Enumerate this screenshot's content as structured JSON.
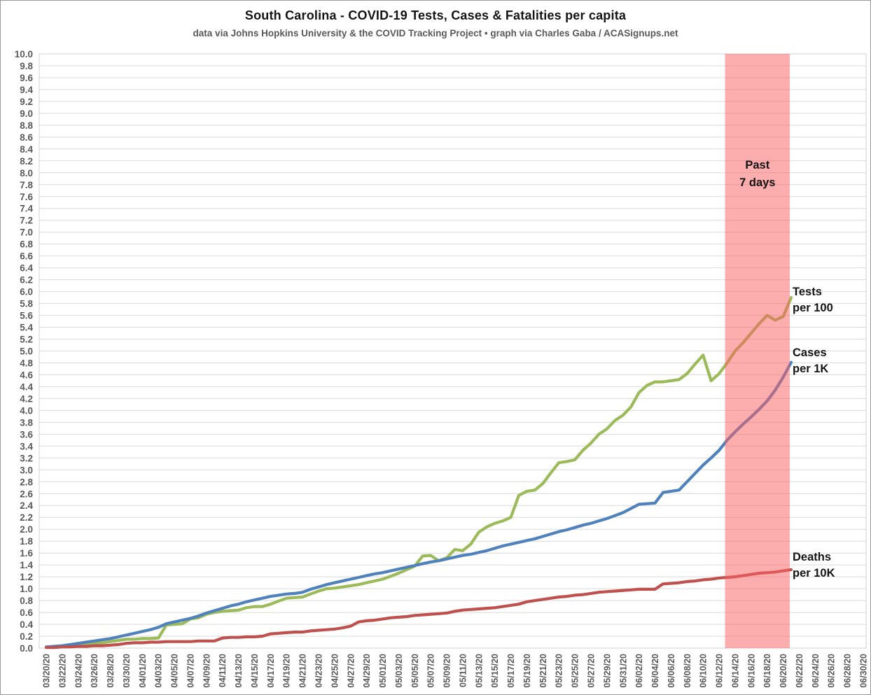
{
  "header": {
    "title": "South Carolina - COVID-19 Tests, Cases & Fatalities per capita",
    "subtitle": "data via Johns Hopkins University & the COVID Tracking Project • graph via Charles Gaba / ACASignups.net"
  },
  "colors": {
    "background": "#FFFFFF",
    "grid": "#D9D9D9",
    "plot_border": "#D0D0D0",
    "axis_text": "#595959",
    "title_text": "#141414",
    "tests_line": "#9BBB59",
    "cases_line": "#4F81BD",
    "deaths_line": "#C0504D",
    "band_fill": "#F96161"
  },
  "chart_data": {
    "type": "line",
    "title": "South Carolina - COVID-19 Tests, Cases & Fatalities per capita",
    "subtitle": "data via Johns Hopkins University & the COVID Tracking Project • graph via Charles Gaba / ACASignups.net",
    "grid": "horizontal",
    "legend_position": "end-of-line-labels",
    "y_axis": {
      "min": 0.0,
      "max": 10.0,
      "step": 0.2,
      "tick_labels": [
        "0.0",
        "0.2",
        "0.4",
        "0.6",
        "0.8",
        "1.0",
        "1.2",
        "1.4",
        "1.6",
        "1.8",
        "2.0",
        "2.2",
        "2.4",
        "2.6",
        "2.8",
        "3.0",
        "3.2",
        "3.4",
        "3.6",
        "3.8",
        "4.0",
        "4.2",
        "4.4",
        "4.6",
        "4.8",
        "5.0",
        "5.2",
        "5.4",
        "5.6",
        "5.8",
        "6.0",
        "6.2",
        "6.4",
        "6.6",
        "6.8",
        "7.0",
        "7.2",
        "7.4",
        "7.6",
        "7.8",
        "8.0",
        "8.2",
        "8.4",
        "8.6",
        "8.8",
        "9.0",
        "9.2",
        "9.4",
        "9.6",
        "9.8",
        "10.0"
      ]
    },
    "x_axis": {
      "start": "03/20/20",
      "end": "06/30/20",
      "tick_interval_days": 2,
      "tick_labels": [
        "03/20/20",
        "03/22/20",
        "03/24/20",
        "03/26/20",
        "03/28/20",
        "03/30/20",
        "04/01/20",
        "04/03/20",
        "04/05/20",
        "04/07/20",
        "04/09/20",
        "04/11/20",
        "04/13/20",
        "04/15/20",
        "04/17/20",
        "04/19/20",
        "04/21/20",
        "04/23/20",
        "04/25/20",
        "04/27/20",
        "04/29/20",
        "05/01/20",
        "05/03/20",
        "05/05/20",
        "05/07/20",
        "05/09/20",
        "05/11/20",
        "05/13/20",
        "05/15/20",
        "05/17/20",
        "05/19/20",
        "05/21/20",
        "05/23/20",
        "05/25/20",
        "05/27/20",
        "05/29/20",
        "05/31/20",
        "06/02/20",
        "06/04/20",
        "06/06/20",
        "06/08/20",
        "06/10/20",
        "06/12/20",
        "06/14/20",
        "06/16/20",
        "06/18/20",
        "06/20/20",
        "06/22/20",
        "06/24/20",
        "06/26/20",
        "06/28/20",
        "06/30/20"
      ]
    },
    "annotation_band": {
      "label_lines": [
        "Past",
        "7 days"
      ],
      "start_date": "06/13/20",
      "end_date": "06/21/20",
      "color": "#F96161",
      "opacity": 0.52
    },
    "data_start_date": "03/20/20",
    "data_end_date": "06/21/20",
    "points_per_day": 1,
    "series": [
      {
        "id": "tests",
        "name": "Tests per 100",
        "label_lines": [
          "Tests",
          "per 100"
        ],
        "color": "#9BBB59",
        "values": [
          0.02,
          0.02,
          0.03,
          0.04,
          0.05,
          0.06,
          0.08,
          0.09,
          0.11,
          0.13,
          0.15,
          0.15,
          0.16,
          0.16,
          0.17,
          0.39,
          0.4,
          0.41,
          0.49,
          0.51,
          0.57,
          0.6,
          0.62,
          0.63,
          0.64,
          0.68,
          0.7,
          0.7,
          0.74,
          0.79,
          0.84,
          0.85,
          0.86,
          0.91,
          0.96,
          1.0,
          1.01,
          1.03,
          1.05,
          1.07,
          1.1,
          1.13,
          1.16,
          1.21,
          1.26,
          1.32,
          1.38,
          1.55,
          1.56,
          1.47,
          1.52,
          1.66,
          1.64,
          1.75,
          1.95,
          2.04,
          2.1,
          2.14,
          2.2,
          2.57,
          2.64,
          2.66,
          2.77,
          2.95,
          3.12,
          3.14,
          3.17,
          3.33,
          3.45,
          3.6,
          3.69,
          3.83,
          3.92,
          4.06,
          4.3,
          4.42,
          4.48,
          4.48,
          4.5,
          4.52,
          4.62,
          4.78,
          4.93,
          4.5,
          4.62,
          4.8,
          5.0,
          5.14,
          5.3,
          5.46,
          5.6,
          5.52,
          5.58,
          5.9
        ]
      },
      {
        "id": "cases",
        "name": "Cases per 1K",
        "label_lines": [
          "Cases",
          "per 1K"
        ],
        "color": "#4F81BD",
        "values": [
          0.02,
          0.03,
          0.04,
          0.06,
          0.08,
          0.1,
          0.12,
          0.14,
          0.16,
          0.19,
          0.22,
          0.25,
          0.28,
          0.31,
          0.35,
          0.41,
          0.44,
          0.47,
          0.5,
          0.54,
          0.59,
          0.63,
          0.67,
          0.71,
          0.74,
          0.78,
          0.81,
          0.84,
          0.87,
          0.89,
          0.91,
          0.92,
          0.94,
          0.99,
          1.03,
          1.07,
          1.1,
          1.13,
          1.16,
          1.19,
          1.22,
          1.25,
          1.27,
          1.3,
          1.33,
          1.36,
          1.39,
          1.42,
          1.45,
          1.47,
          1.5,
          1.53,
          1.56,
          1.58,
          1.61,
          1.64,
          1.68,
          1.72,
          1.75,
          1.78,
          1.81,
          1.84,
          1.88,
          1.92,
          1.96,
          1.99,
          2.03,
          2.07,
          2.1,
          2.14,
          2.18,
          2.23,
          2.28,
          2.35,
          2.42,
          2.43,
          2.44,
          2.62,
          2.64,
          2.66,
          2.8,
          2.94,
          3.08,
          3.2,
          3.33,
          3.5,
          3.64,
          3.77,
          3.89,
          4.02,
          4.16,
          4.34,
          4.56,
          4.81
        ]
      },
      {
        "id": "deaths",
        "name": "Deaths per 10K",
        "label_lines": [
          "Deaths",
          "per 10K"
        ],
        "color": "#C0504D",
        "values": [
          0.01,
          0.01,
          0.02,
          0.02,
          0.03,
          0.03,
          0.04,
          0.04,
          0.05,
          0.06,
          0.08,
          0.09,
          0.09,
          0.1,
          0.1,
          0.11,
          0.11,
          0.11,
          0.11,
          0.12,
          0.12,
          0.12,
          0.17,
          0.18,
          0.18,
          0.19,
          0.19,
          0.2,
          0.24,
          0.25,
          0.26,
          0.27,
          0.27,
          0.29,
          0.3,
          0.31,
          0.32,
          0.34,
          0.37,
          0.44,
          0.46,
          0.47,
          0.49,
          0.51,
          0.52,
          0.53,
          0.55,
          0.56,
          0.57,
          0.58,
          0.59,
          0.62,
          0.64,
          0.65,
          0.66,
          0.67,
          0.68,
          0.7,
          0.72,
          0.74,
          0.78,
          0.8,
          0.82,
          0.84,
          0.86,
          0.87,
          0.89,
          0.9,
          0.92,
          0.94,
          0.95,
          0.96,
          0.97,
          0.98,
          0.99,
          0.99,
          0.99,
          1.08,
          1.09,
          1.1,
          1.12,
          1.13,
          1.15,
          1.16,
          1.18,
          1.19,
          1.2,
          1.22,
          1.24,
          1.26,
          1.27,
          1.28,
          1.3,
          1.32
        ]
      }
    ]
  }
}
